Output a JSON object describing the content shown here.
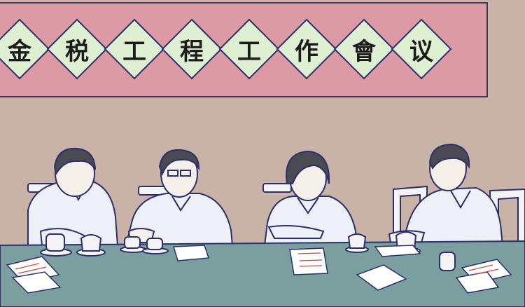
{
  "banner": {
    "characters": [
      "金",
      "税",
      "工",
      "程",
      "工",
      "作",
      "會",
      "议"
    ]
  },
  "colors": {
    "wall": "#c9b3a6",
    "banner": "#dc9aa4",
    "diamond": "#dff0d2",
    "table": "#7a9f9e",
    "outline": "#2b2f6e",
    "shirt": "#f1f3fa"
  }
}
